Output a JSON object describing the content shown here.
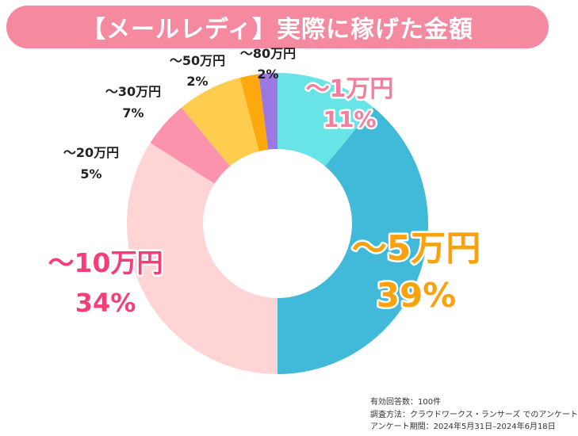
{
  "title": "【メールレディ】実際に稼げた金額",
  "chart_data": {
    "type": "pie",
    "donut": true,
    "categories": [
      "〜1万円",
      "〜5万円",
      "〜10万円",
      "〜20万円",
      "〜30万円",
      "〜50万円",
      "〜80万円"
    ],
    "values": [
      11,
      39,
      34,
      5,
      7,
      2,
      2
    ],
    "value_labels": [
      "11%",
      "39%",
      "34%",
      "5%",
      "7%",
      "2%",
      "2%"
    ],
    "colors": [
      "#68e3e6",
      "#41b9d9",
      "#fed4d5",
      "#fb93ad",
      "#fecc4e",
      "#fda90e",
      "#9b79e0"
    ],
    "label_colors": [
      "#f37f9d",
      "#f9a20f",
      "#f53e77",
      "#222222",
      "#222222",
      "#222222",
      "#222222"
    ]
  },
  "footnote": {
    "respondents": "有効回答数：100件",
    "method": "調査方法：クラウドワークス・ランサーズ でのアンケート",
    "period": "アンケート期間：2024年5月31日–2024年6月18日"
  }
}
